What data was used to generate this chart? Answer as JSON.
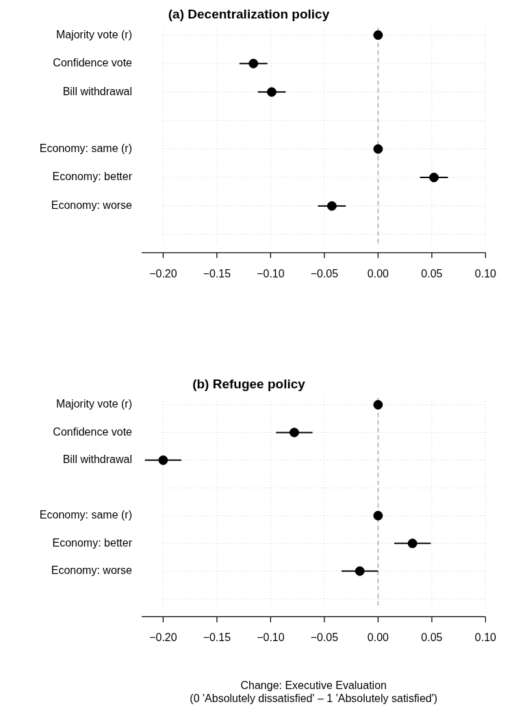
{
  "chart_data": [
    {
      "type": "scatter",
      "title": "(a) Decentralization policy",
      "orientation": "horizontal",
      "categories": [
        "Majority vote (r)",
        "Confidence vote",
        "Bill withdrawal",
        null,
        "Economy: same (r)",
        "Economy: better",
        "Economy: worse",
        null
      ],
      "values": [
        0,
        -0.116,
        -0.099,
        null,
        0,
        0.052,
        -0.043,
        null
      ],
      "errors": [
        null,
        0.013,
        0.013,
        null,
        null,
        0.013,
        0.013,
        null
      ],
      "color": "#000000",
      "marker": "circle",
      "xlim": [
        -0.22,
        0.1
      ],
      "xticks": [
        {
          "value": -0.2,
          "label": "−0.20"
        },
        {
          "value": -0.15,
          "label": "−0.15"
        },
        {
          "value": -0.1,
          "label": "−0.10"
        },
        {
          "value": -0.05,
          "label": "−0.05"
        },
        {
          "value": 0,
          "label": "0.00"
        },
        {
          "value": 0.05,
          "label": "0.05"
        },
        {
          "value": 0.1,
          "label": "0.10"
        }
      ],
      "ref_lines": [
        {
          "axis": "x",
          "value": 0,
          "color": "#a6a6a6",
          "line_style": "dashed"
        }
      ],
      "grid": true,
      "legend": false
    },
    {
      "type": "scatter",
      "title": "(b) Refugee policy",
      "orientation": "horizontal",
      "xlabel": "Change: Executive Evaluation\n(0 'Absolutely dissatisfied' – 1 'Absolutely satisfied')",
      "categories": [
        "Majority vote (r)",
        "Confidence vote",
        "Bill withdrawal",
        null,
        "Economy: same (r)",
        "Economy: better",
        "Economy: worse",
        null
      ],
      "values": [
        0,
        -0.078,
        -0.2,
        null,
        0,
        0.032,
        -0.017,
        null
      ],
      "errors": [
        null,
        0.017,
        0.017,
        null,
        null,
        0.017,
        0.017,
        null
      ],
      "color": "#000000",
      "marker": "circle",
      "xlim": [
        -0.22,
        0.1
      ],
      "xticks": [
        {
          "value": -0.2,
          "label": "−0.20"
        },
        {
          "value": -0.15,
          "label": "−0.15"
        },
        {
          "value": -0.1,
          "label": "−0.10"
        },
        {
          "value": -0.05,
          "label": "−0.05"
        },
        {
          "value": 0,
          "label": "0.00"
        },
        {
          "value": 0.05,
          "label": "0.05"
        },
        {
          "value": 0.1,
          "label": "0.10"
        }
      ],
      "ref_lines": [
        {
          "axis": "x",
          "value": 0,
          "color": "#a6a6a6",
          "line_style": "dashed"
        }
      ],
      "grid": true,
      "legend": false
    }
  ]
}
